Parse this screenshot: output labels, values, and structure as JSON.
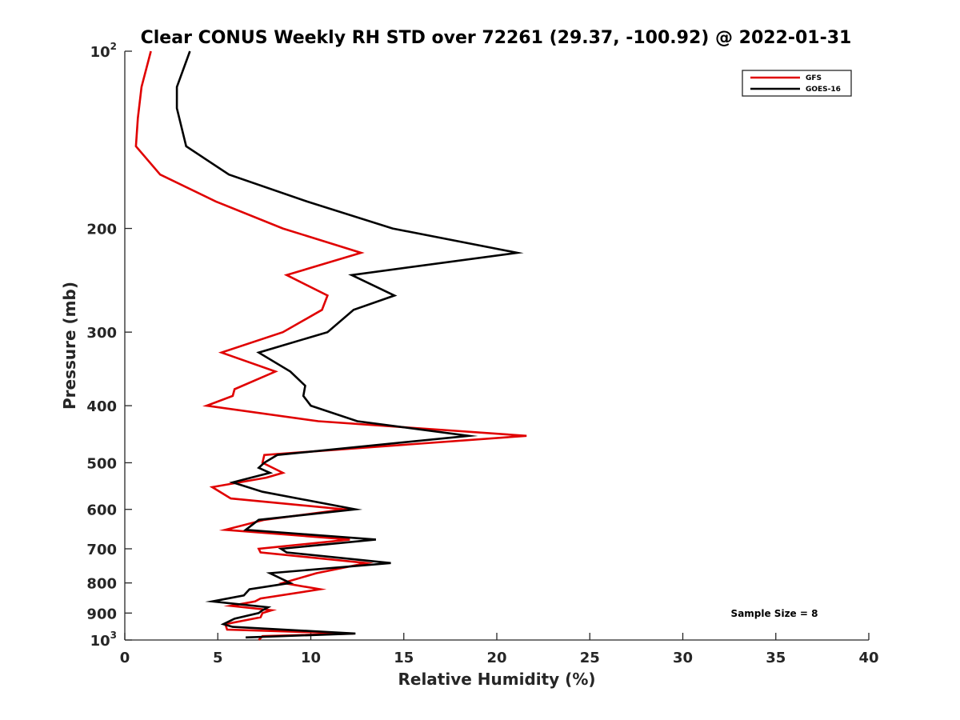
{
  "chart_data": {
    "type": "line",
    "title": "Clear CONUS Weekly RH STD over 72261 (29.37, -100.92) @ 2022-01-31",
    "xlabel": "Relative Humidity (%)",
    "ylabel": "Pressure (mb)",
    "xlim": [
      0,
      40
    ],
    "ylim": [
      100,
      1000
    ],
    "yscale": "log",
    "y_reversed": true,
    "grid": false,
    "x_ticks": [
      "0",
      "5",
      "10",
      "15",
      "20",
      "25",
      "30",
      "35",
      "40"
    ],
    "y_ticks": [
      {
        "value": 100,
        "base": "10",
        "exp": "2"
      },
      {
        "value": 200,
        "label": "200"
      },
      {
        "value": 300,
        "label": "300"
      },
      {
        "value": 400,
        "label": "400"
      },
      {
        "value": 500,
        "label": "500"
      },
      {
        "value": 600,
        "label": "600"
      },
      {
        "value": 700,
        "label": "700"
      },
      {
        "value": 800,
        "label": "800"
      },
      {
        "value": 900,
        "label": "900"
      },
      {
        "value": 1000,
        "base": "10",
        "exp": "3"
      }
    ],
    "legend_position": "top-right",
    "annotation": "Sample Size = 8",
    "series": [
      {
        "name": "GFS",
        "color": "#e00000",
        "points": [
          [
            1.4,
            100
          ],
          [
            0.9,
            115
          ],
          [
            0.7,
            130
          ],
          [
            0.6,
            145
          ],
          [
            1.9,
            162
          ],
          [
            4.9,
            180
          ],
          [
            8.5,
            200
          ],
          [
            12.7,
            220
          ],
          [
            8.7,
            240
          ],
          [
            10.9,
            260
          ],
          [
            10.6,
            275
          ],
          [
            8.5,
            300
          ],
          [
            5.2,
            325
          ],
          [
            8.1,
            350
          ],
          [
            5.9,
            375
          ],
          [
            5.8,
            385
          ],
          [
            4.4,
            400
          ],
          [
            10.4,
            425
          ],
          [
            21.6,
            450
          ],
          [
            7.5,
            485
          ],
          [
            7.4,
            500
          ],
          [
            8.5,
            520
          ],
          [
            7.6,
            530
          ],
          [
            4.7,
            550
          ],
          [
            5.7,
            575
          ],
          [
            11.8,
            600
          ],
          [
            7.5,
            625
          ],
          [
            5.4,
            650
          ],
          [
            12.1,
            675
          ],
          [
            7.2,
            700
          ],
          [
            7.3,
            710
          ],
          [
            13.0,
            740
          ],
          [
            10.3,
            770
          ],
          [
            8.5,
            800
          ],
          [
            10.5,
            820
          ],
          [
            7.3,
            850
          ],
          [
            7.0,
            860
          ],
          [
            5.7,
            875
          ],
          [
            7.9,
            890
          ],
          [
            7.4,
            900
          ],
          [
            7.3,
            915
          ],
          [
            5.4,
            940
          ],
          [
            5.5,
            960
          ],
          [
            12.3,
            975
          ],
          [
            7.4,
            985
          ],
          [
            7.2,
            1000
          ]
        ]
      },
      {
        "name": "GOES-16",
        "color": "#000000",
        "points": [
          [
            3.5,
            100
          ],
          [
            2.8,
            115
          ],
          [
            2.8,
            125
          ],
          [
            3.3,
            145
          ],
          [
            5.6,
            162
          ],
          [
            9.8,
            180
          ],
          [
            14.4,
            200
          ],
          [
            21.1,
            220
          ],
          [
            12.2,
            240
          ],
          [
            14.5,
            260
          ],
          [
            12.3,
            275
          ],
          [
            10.9,
            300
          ],
          [
            7.2,
            325
          ],
          [
            8.9,
            350
          ],
          [
            9.7,
            370
          ],
          [
            9.6,
            385
          ],
          [
            10.0,
            400
          ],
          [
            12.5,
            425
          ],
          [
            18.5,
            450
          ],
          [
            8.2,
            485
          ],
          [
            7.5,
            500
          ],
          [
            7.2,
            510
          ],
          [
            7.8,
            520
          ],
          [
            5.8,
            540
          ],
          [
            7.4,
            560
          ],
          [
            12.4,
            600
          ],
          [
            7.2,
            625
          ],
          [
            6.5,
            650
          ],
          [
            13.5,
            675
          ],
          [
            8.4,
            700
          ],
          [
            8.7,
            710
          ],
          [
            14.3,
            740
          ],
          [
            7.8,
            770
          ],
          [
            8.9,
            800
          ],
          [
            6.7,
            820
          ],
          [
            6.4,
            840
          ],
          [
            4.7,
            860
          ],
          [
            7.7,
            880
          ],
          [
            7.4,
            890
          ],
          [
            7.2,
            900
          ],
          [
            5.9,
            920
          ],
          [
            5.3,
            940
          ],
          [
            5.8,
            950
          ],
          [
            12.4,
            975
          ],
          [
            6.5,
            990
          ]
        ]
      }
    ]
  }
}
